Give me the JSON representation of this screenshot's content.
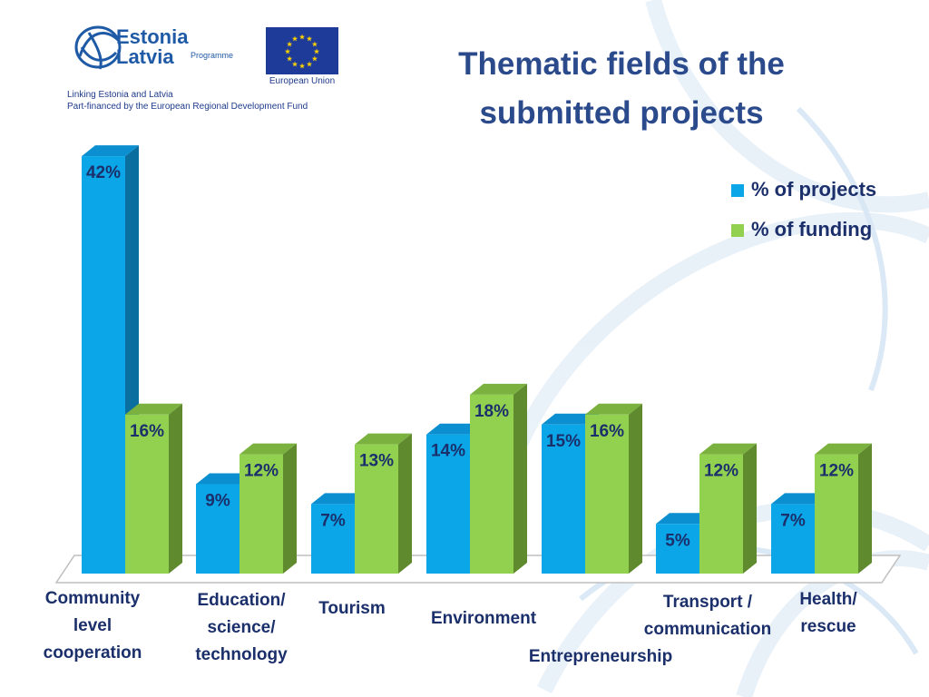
{
  "header": {
    "programme_name": "Estonia\nLatvia",
    "programme_sub": "Programme",
    "eu_label": "European Union",
    "tagline_line1": "Linking Estonia and Latvia",
    "tagline_line2": "Part-financed by the European Regional Development Fund"
  },
  "colors": {
    "projects": "#0aa6e8",
    "projects_side": "#0a6e9e",
    "funding": "#92d050",
    "funding_side": "#5f8a2e",
    "label_text": "#1b2f6b",
    "title": "#2b4a8c"
  },
  "chart_data": {
    "type": "bar",
    "title": "Thematic fields of the submitted projects",
    "categories": [
      "Community level cooperation",
      "Education/ science/ technology",
      "Tourism",
      "Environment",
      "Entrepreneurship",
      "Transport / communication",
      "Health/ rescue"
    ],
    "series": [
      {
        "name": "% of projects",
        "values": [
          42,
          9,
          7,
          14,
          15,
          5,
          7
        ],
        "labels": [
          "42%",
          "9%",
          "7%",
          "14%",
          "15%",
          "5%",
          "7%"
        ]
      },
      {
        "name": "% of funding",
        "values": [
          16,
          12,
          13,
          18,
          16,
          12,
          12
        ],
        "labels": [
          "16%",
          "12%",
          "13%",
          "18%",
          "16%",
          "12%",
          "12%"
        ]
      }
    ],
    "legend_position": "top-right",
    "ylim": [
      0,
      42
    ],
    "grid": false,
    "xlabel": "",
    "ylabel": ""
  }
}
